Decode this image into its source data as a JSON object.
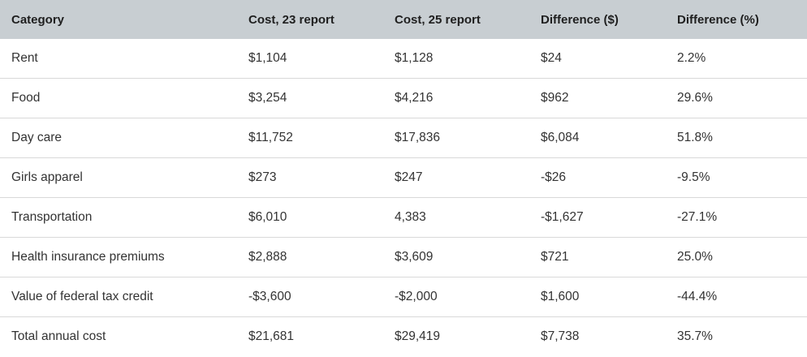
{
  "table": {
    "headers": [
      "Category",
      "Cost, 23 report",
      "Cost, 25 report",
      "Difference ($)",
      "Difference (%)"
    ],
    "rows": [
      [
        "Rent",
        "$1,104",
        "$1,128",
        "$24",
        "2.2%"
      ],
      [
        "Food",
        "$3,254",
        "$4,216",
        "$962",
        "29.6%"
      ],
      [
        "Day care",
        "$11,752",
        "$17,836",
        "$6,084",
        "51.8%"
      ],
      [
        "Girls apparel",
        "$273",
        "$247",
        "-$26",
        "-9.5%"
      ],
      [
        "Transportation",
        "$6,010",
        "4,383",
        "-$1,627",
        "-27.1%"
      ],
      [
        "Health insurance premiums",
        "$2,888",
        "$3,609",
        "$721",
        "25.0%"
      ],
      [
        "Value of federal tax credit",
        "-$3,600",
        "-$2,000",
        "$1,600",
        "-44.4%"
      ],
      [
        "Total annual cost",
        "$21,681",
        "$29,419",
        "$7,738",
        "35.7%"
      ]
    ]
  },
  "colors": {
    "header_background": "#c8ced2",
    "row_divider": "#d9d9d9",
    "text": "#333333"
  }
}
